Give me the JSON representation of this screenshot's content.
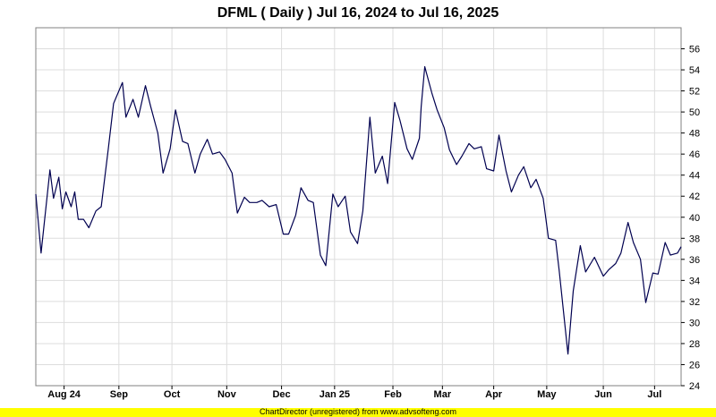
{
  "chart_data": {
    "type": "line",
    "title": "DFML ( Daily ) Jul 16, 2024 to Jul 16, 2025",
    "xlabel": "",
    "ylabel": "",
    "ylim": [
      24,
      58
    ],
    "y_ticks": [
      24,
      26,
      28,
      30,
      32,
      34,
      36,
      38,
      40,
      42,
      44,
      46,
      48,
      50,
      52,
      54,
      56
    ],
    "x_range": [
      "2024-07-16",
      "2025-07-16"
    ],
    "x_ticks": [
      {
        "label": "Aug 24",
        "date": "2024-08-01"
      },
      {
        "label": "Sep",
        "date": "2024-09-01"
      },
      {
        "label": "Oct",
        "date": "2024-10-01"
      },
      {
        "label": "Nov",
        "date": "2024-11-01"
      },
      {
        "label": "Dec",
        "date": "2024-12-02"
      },
      {
        "label": "Jan 25",
        "date": "2025-01-01"
      },
      {
        "label": "Feb",
        "date": "2025-02-03"
      },
      {
        "label": "Mar",
        "date": "2025-03-03"
      },
      {
        "label": "Apr",
        "date": "2025-04-01"
      },
      {
        "label": "May",
        "date": "2025-05-01"
      },
      {
        "label": "Jun",
        "date": "2025-06-02"
      },
      {
        "label": "Jul",
        "date": "2025-07-01"
      }
    ],
    "grid": true,
    "line_color": "#000050",
    "series": [
      {
        "x": [
          "2024-07-16",
          "2024-07-19",
          "2024-07-24",
          "2024-07-26",
          "2024-07-29",
          "2024-07-31",
          "2024-08-02",
          "2024-08-05",
          "2024-08-07",
          "2024-08-09",
          "2024-08-12",
          "2024-08-15",
          "2024-08-19",
          "2024-08-22",
          "2024-08-26",
          "2024-08-29",
          "2024-09-03",
          "2024-09-05",
          "2024-09-09",
          "2024-09-12",
          "2024-09-16",
          "2024-09-19",
          "2024-09-23",
          "2024-09-26",
          "2024-09-30",
          "2024-10-03",
          "2024-10-07",
          "2024-10-10",
          "2024-10-14",
          "2024-10-17",
          "2024-10-21",
          "2024-10-24",
          "2024-10-28",
          "2024-10-31",
          "2024-11-04",
          "2024-11-07",
          "2024-11-11",
          "2024-11-14",
          "2024-11-18",
          "2024-11-21",
          "2024-11-25",
          "2024-11-29",
          "2024-12-03",
          "2024-12-06",
          "2024-12-10",
          "2024-12-13",
          "2024-12-17",
          "2024-12-20",
          "2024-12-24",
          "2024-12-27",
          "2024-12-31",
          "2025-01-03",
          "2025-01-07",
          "2025-01-10",
          "2025-01-14",
          "2025-01-17",
          "2025-01-21",
          "2025-01-24",
          "2025-01-28",
          "2025-01-31",
          "2025-02-04",
          "2025-02-07",
          "2025-02-11",
          "2025-02-14",
          "2025-02-18",
          "2025-02-19",
          "2025-02-21",
          "2025-02-25",
          "2025-02-28",
          "2025-03-04",
          "2025-03-07",
          "2025-03-11",
          "2025-03-14",
          "2025-03-18",
          "2025-03-21",
          "2025-03-25",
          "2025-03-28",
          "2025-04-01",
          "2025-04-04",
          "2025-04-08",
          "2025-04-11",
          "2025-04-15",
          "2025-04-18",
          "2025-04-22",
          "2025-04-25",
          "2025-04-29",
          "2025-05-02",
          "2025-05-06",
          "2025-05-08",
          "2025-05-13",
          "2025-05-16",
          "2025-05-20",
          "2025-05-23",
          "2025-05-28",
          "2025-06-02",
          "2025-06-05",
          "2025-06-09",
          "2025-06-12",
          "2025-06-16",
          "2025-06-19",
          "2025-06-23",
          "2025-06-26",
          "2025-06-30",
          "2025-07-03",
          "2025-07-07",
          "2025-07-10",
          "2025-07-14",
          "2025-07-16"
        ],
        "values": [
          42.2,
          36.6,
          44.5,
          41.8,
          43.8,
          40.8,
          42.4,
          41.0,
          42.4,
          39.8,
          39.8,
          39.0,
          40.6,
          41.0,
          46.5,
          50.8,
          52.8,
          49.5,
          51.2,
          49.5,
          52.5,
          50.5,
          48.0,
          44.2,
          46.5,
          50.2,
          47.2,
          47.0,
          44.2,
          46.0,
          47.4,
          46.0,
          46.2,
          45.5,
          44.2,
          40.4,
          41.9,
          41.4,
          41.4,
          41.6,
          41.0,
          41.2,
          38.4,
          38.4,
          40.2,
          42.8,
          41.6,
          41.4,
          36.4,
          35.4,
          42.2,
          41.0,
          42.0,
          38.6,
          37.5,
          40.6,
          49.5,
          44.2,
          45.8,
          43.2,
          50.9,
          49.2,
          46.5,
          45.5,
          47.5,
          50.5,
          54.3,
          51.8,
          50.2,
          48.5,
          46.4,
          45.0,
          45.8,
          47.0,
          46.5,
          46.7,
          44.6,
          44.4,
          47.8,
          44.4,
          42.4,
          44.0,
          44.8,
          42.8,
          43.6,
          41.8,
          38.0,
          37.8,
          35.0,
          27.0,
          33.0,
          37.3,
          34.8,
          36.2,
          34.4,
          35.0,
          35.6,
          36.6,
          39.5,
          37.6,
          36.0,
          31.9,
          34.7,
          34.6,
          37.6,
          36.4,
          36.6,
          37.2
        ]
      }
    ]
  },
  "footer": {
    "text": "ChartDirector (unregistered) from www.advsofteng.com"
  }
}
